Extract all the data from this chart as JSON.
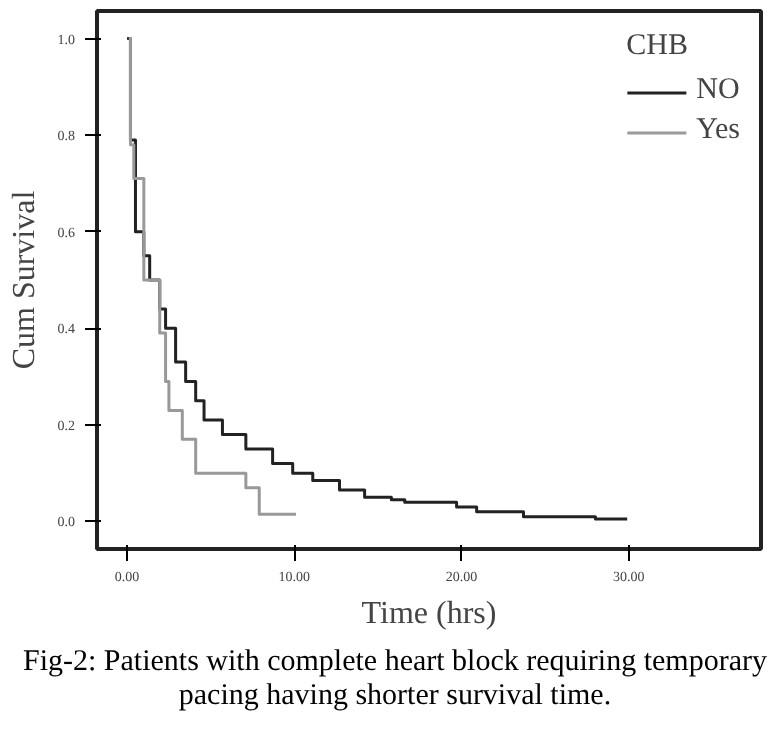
{
  "chart_data": {
    "type": "step",
    "xlabel": "Time (hrs)",
    "ylabel": "Cum Survival",
    "legend_title": "CHB",
    "legend": "top right",
    "grid": false,
    "xlim": [
      -1.8,
      37.9
    ],
    "ylim": [
      -0.057,
      1.057
    ],
    "xticks": [
      {
        "value": 0,
        "label": "0.00"
      },
      {
        "value": 10,
        "label": "10.00"
      },
      {
        "value": 20,
        "label": "20.00"
      },
      {
        "value": 30,
        "label": "30.00"
      }
    ],
    "yticks": [
      {
        "value": 0,
        "label": "0.0"
      },
      {
        "value": 0.2,
        "label": "0.2"
      },
      {
        "value": 0.4,
        "label": "0.4"
      },
      {
        "value": 0.6,
        "label": "0.6"
      },
      {
        "value": 0.8,
        "label": "0.8"
      },
      {
        "value": 1.0,
        "label": "1.0"
      }
    ],
    "series": [
      {
        "name": "NO",
        "color": "#222222",
        "x": [
          0,
          0.2,
          0.5,
          1.0,
          1.35,
          1.95,
          2.3,
          2.9,
          3.5,
          4.1,
          4.6,
          5.7,
          7.1,
          8.7,
          9.9,
          11.1,
          12.7,
          14.2,
          15.8,
          16.6,
          19.7,
          20.9,
          23.7,
          28.0,
          29.9
        ],
        "values": [
          1.0,
          0.79,
          0.6,
          0.55,
          0.5,
          0.44,
          0.4,
          0.33,
          0.29,
          0.25,
          0.21,
          0.18,
          0.15,
          0.12,
          0.1,
          0.085,
          0.065,
          0.05,
          0.045,
          0.04,
          0.03,
          0.02,
          0.01,
          0.005,
          0.005
        ]
      },
      {
        "name": "Yes",
        "color": "#999999",
        "x": [
          0.1,
          0.2,
          0.4,
          1.0,
          1.95,
          2.3,
          2.5,
          3.3,
          4.1,
          7.1,
          7.9,
          10.1
        ],
        "values": [
          1.0,
          0.78,
          0.71,
          0.5,
          0.39,
          0.29,
          0.23,
          0.17,
          0.1,
          0.07,
          0.015,
          0.015
        ]
      }
    ],
    "annotations": [
      "Fig-2: Patients with complete heart block requiring temporary pacing having shorter survival time."
    ]
  }
}
